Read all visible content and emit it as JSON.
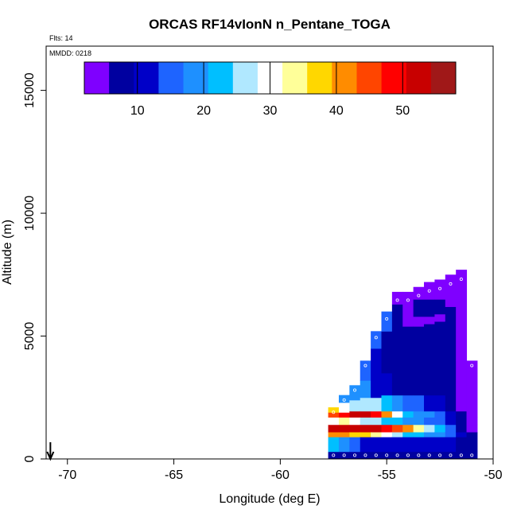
{
  "chart_data": {
    "type": "heatmap",
    "title": "ORCAS RF14vIonN n_Pentane_TOGA",
    "flights_label": "Flts: 14",
    "date_label": "MMDD: 0218",
    "xlabel": "Longitude (deg E)",
    "ylabel": "Altitude (m)",
    "xlim": [
      -71,
      -50
    ],
    "ylim": [
      0,
      16800
    ],
    "x_ticks": [
      -70,
      -65,
      -60,
      -55,
      -50
    ],
    "y_ticks": [
      0,
      5000,
      10000,
      15000
    ],
    "colorbar": {
      "range": [
        2,
        58
      ],
      "ticks": [
        10,
        20,
        30,
        40,
        50
      ],
      "colors": [
        "#7f00ff",
        "#0000a0",
        "#0000c8",
        "#1e64ff",
        "#1e90ff",
        "#00bfff",
        "#b0e8ff",
        "#ffffff",
        "#ffff99",
        "#ffd700",
        "#ff8c00",
        "#ff4500",
        "#ff0000",
        "#c80000",
        "#a01818"
      ]
    },
    "arrow_longitude": -70.8,
    "columns": [
      {
        "lon": -57.5,
        "top": 2100,
        "levels": [
          [
            0,
            300,
            8
          ],
          [
            300,
            900,
            22
          ],
          [
            900,
            1100,
            40
          ],
          [
            1100,
            1400,
            52
          ],
          [
            1400,
            1700,
            30
          ],
          [
            1700,
            1900,
            45
          ],
          [
            1900,
            2100,
            38
          ]
        ]
      },
      {
        "lon": -57.0,
        "top": 2600,
        "levels": [
          [
            0,
            300,
            8
          ],
          [
            300,
            900,
            20
          ],
          [
            900,
            1100,
            42
          ],
          [
            1100,
            1400,
            54
          ],
          [
            1400,
            1700,
            32
          ],
          [
            1700,
            1900,
            50
          ],
          [
            1900,
            2300,
            30
          ],
          [
            2300,
            2600,
            20
          ]
        ]
      },
      {
        "lon": -56.5,
        "top": 3000,
        "levels": [
          [
            0,
            300,
            8
          ],
          [
            300,
            900,
            15
          ],
          [
            900,
            1100,
            38
          ],
          [
            1100,
            1400,
            54
          ],
          [
            1400,
            1700,
            30
          ],
          [
            1700,
            1950,
            52
          ],
          [
            1950,
            2400,
            28
          ],
          [
            2400,
            3000,
            18
          ]
        ]
      },
      {
        "lon": -56.0,
        "top": 4000,
        "levels": [
          [
            0,
            300,
            8
          ],
          [
            300,
            900,
            12
          ],
          [
            900,
            1100,
            36
          ],
          [
            1100,
            1400,
            54
          ],
          [
            1400,
            1700,
            28
          ],
          [
            1700,
            1950,
            54
          ],
          [
            1950,
            2500,
            26
          ],
          [
            2500,
            3200,
            18
          ],
          [
            3200,
            4000,
            14
          ]
        ]
      },
      {
        "lon": -55.5,
        "top": 5200,
        "levels": [
          [
            0,
            300,
            8
          ],
          [
            300,
            900,
            12
          ],
          [
            900,
            1100,
            34
          ],
          [
            1100,
            1400,
            54
          ],
          [
            1400,
            1700,
            26
          ],
          [
            1700,
            1950,
            48
          ],
          [
            1950,
            2500,
            25
          ],
          [
            2500,
            3200,
            12
          ],
          [
            3200,
            4500,
            10
          ],
          [
            4500,
            5200,
            16
          ]
        ]
      },
      {
        "lon": -55.0,
        "top": 6000,
        "levels": [
          [
            0,
            300,
            8
          ],
          [
            300,
            900,
            12
          ],
          [
            900,
            1100,
            30
          ],
          [
            1100,
            1400,
            50
          ],
          [
            1400,
            1700,
            24
          ],
          [
            1700,
            1950,
            40
          ],
          [
            1950,
            2600,
            22
          ],
          [
            2600,
            3500,
            10
          ],
          [
            3500,
            5200,
            8
          ],
          [
            5200,
            6000,
            14
          ]
        ]
      },
      {
        "lon": -54.5,
        "top": 6800,
        "levels": [
          [
            0,
            300,
            8
          ],
          [
            300,
            900,
            12
          ],
          [
            900,
            1100,
            28
          ],
          [
            1100,
            1400,
            46
          ],
          [
            1400,
            1700,
            22
          ],
          [
            1700,
            1950,
            30
          ],
          [
            1950,
            2600,
            18
          ],
          [
            2600,
            5200,
            8
          ],
          [
            5200,
            6300,
            6
          ],
          [
            6300,
            6800,
            4
          ]
        ]
      },
      {
        "lon": -54.0,
        "top": 6800,
        "levels": [
          [
            0,
            300,
            8
          ],
          [
            300,
            900,
            12
          ],
          [
            900,
            1100,
            24
          ],
          [
            1100,
            1400,
            40
          ],
          [
            1400,
            1700,
            20
          ],
          [
            1700,
            1950,
            24
          ],
          [
            1950,
            2600,
            16
          ],
          [
            2600,
            5400,
            8
          ],
          [
            5400,
            6300,
            5
          ],
          [
            6300,
            6800,
            3
          ]
        ]
      },
      {
        "lon": -53.5,
        "top": 7000,
        "levels": [
          [
            0,
            300,
            8
          ],
          [
            300,
            900,
            12
          ],
          [
            900,
            1100,
            22
          ],
          [
            1100,
            1400,
            34
          ],
          [
            1400,
            1700,
            18
          ],
          [
            1700,
            1950,
            20
          ],
          [
            1950,
            2600,
            14
          ],
          [
            2600,
            5400,
            8
          ],
          [
            5400,
            5800,
            4
          ],
          [
            5800,
            6500,
            8
          ],
          [
            6500,
            7000,
            3
          ]
        ]
      },
      {
        "lon": -53.0,
        "top": 7200,
        "levels": [
          [
            0,
            300,
            8
          ],
          [
            300,
            900,
            10
          ],
          [
            900,
            1100,
            20
          ],
          [
            1100,
            1400,
            28
          ],
          [
            1400,
            1700,
            16
          ],
          [
            1700,
            1950,
            18
          ],
          [
            1950,
            2600,
            12
          ],
          [
            2600,
            5500,
            8
          ],
          [
            5500,
            5800,
            4
          ],
          [
            5800,
            6500,
            8
          ],
          [
            6500,
            7200,
            3
          ]
        ]
      },
      {
        "lon": -52.5,
        "top": 7300,
        "levels": [
          [
            0,
            300,
            8
          ],
          [
            300,
            900,
            10
          ],
          [
            900,
            1100,
            18
          ],
          [
            1100,
            1400,
            24
          ],
          [
            1400,
            1700,
            14
          ],
          [
            1700,
            1950,
            16
          ],
          [
            1950,
            2600,
            10
          ],
          [
            2600,
            5600,
            8
          ],
          [
            5600,
            5900,
            4
          ],
          [
            5900,
            6500,
            8
          ],
          [
            6500,
            7300,
            3
          ]
        ]
      },
      {
        "lon": -52.0,
        "top": 7500,
        "levels": [
          [
            0,
            300,
            8
          ],
          [
            300,
            900,
            10
          ],
          [
            900,
            1100,
            14
          ],
          [
            1100,
            1400,
            14
          ],
          [
            1400,
            1700,
            10
          ],
          [
            1700,
            1950,
            12
          ],
          [
            1950,
            2600,
            9
          ],
          [
            2600,
            5600,
            8
          ],
          [
            5600,
            6200,
            8
          ],
          [
            6200,
            7500,
            3
          ]
        ]
      },
      {
        "lon": -51.5,
        "top": 7700,
        "levels": [
          [
            0,
            300,
            8
          ],
          [
            300,
            900,
            9
          ],
          [
            900,
            1100,
            10
          ],
          [
            1100,
            1400,
            6
          ],
          [
            1400,
            1700,
            8
          ],
          [
            1700,
            1950,
            6
          ],
          [
            1950,
            4000,
            5
          ],
          [
            4000,
            7700,
            4
          ]
        ]
      },
      {
        "lon": -51.0,
        "top": 4000,
        "levels": [
          [
            0,
            300,
            8
          ],
          [
            300,
            1100,
            6
          ],
          [
            1100,
            1400,
            4
          ],
          [
            1400,
            1700,
            5
          ],
          [
            1700,
            4000,
            4
          ]
        ]
      }
    ]
  }
}
